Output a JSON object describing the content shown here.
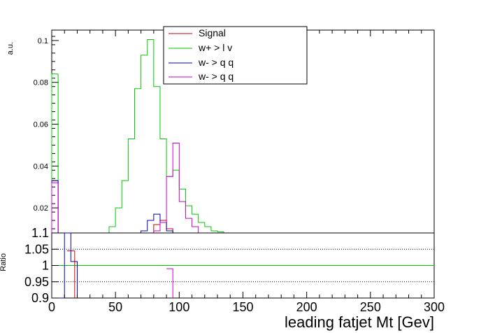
{
  "chart_data": [
    {
      "type": "histogram",
      "ylabel": "a.u.",
      "xlim": [
        0,
        300
      ],
      "ylim": [
        0.008,
        0.105
      ],
      "yticks": [
        0.02,
        0.04,
        0.06,
        0.08,
        0.1
      ],
      "ytick_labels": [
        "0.02",
        "0.04",
        "0.06",
        "0.08",
        "0.1"
      ],
      "bin_width": 5,
      "legend": {
        "placement": "top-center",
        "entries": [
          {
            "label": "Signal",
            "color": "#cc0000"
          },
          {
            "label": "w+ > l v",
            "color": "#00cc00"
          },
          {
            "label": "w- > q q",
            "color": "#0000bb"
          },
          {
            "label": "w- > q q",
            "color": "#cc00cc"
          }
        ]
      },
      "series": [
        {
          "name": "Signal",
          "color": "#cc0000",
          "x": [
            0,
            45,
            50,
            55,
            60,
            65,
            70,
            75,
            80,
            85,
            90,
            95,
            100,
            105,
            110,
            115,
            120
          ],
          "values": [
            0.033,
            0.0,
            0.0,
            0.0,
            0.0,
            0.0,
            0.001,
            0.007,
            0.012,
            0.014,
            0.01,
            0.005,
            0.002,
            0.0,
            0.0,
            0.0,
            0.0
          ]
        },
        {
          "name": "w+ > l v",
          "color": "#00cc00",
          "x": [
            0,
            5,
            10,
            15,
            20,
            25,
            30,
            35,
            40,
            45,
            50,
            55,
            60,
            65,
            70,
            75,
            80,
            85,
            90,
            95,
            100,
            105,
            110,
            115,
            120,
            125,
            130,
            135,
            140
          ],
          "values": [
            0.084,
            0.0,
            0.0,
            0.0,
            0.0,
            0.0,
            0.0,
            0.0,
            0.0,
            0.011,
            0.02,
            0.033,
            0.053,
            0.077,
            0.093,
            0.1005,
            0.078,
            0.053,
            0.035,
            0.038,
            0.029,
            0.021,
            0.017,
            0.013,
            0.011,
            0.009,
            0.0085,
            0.0,
            0.0
          ]
        },
        {
          "name": "w- > q q",
          "color": "#0000bb",
          "x": [
            0,
            65,
            70,
            75,
            80,
            85,
            90,
            95,
            100,
            105,
            110
          ],
          "values": [
            0.033,
            0.008,
            0.009,
            0.014,
            0.017,
            0.013,
            0.009,
            0.006,
            0.004,
            0.0,
            0.0
          ]
        },
        {
          "name": "w- > q q",
          "color": "#cc00cc",
          "x": [
            0,
            70,
            75,
            80,
            85,
            90,
            95,
            100,
            105,
            110,
            115,
            120
          ],
          "values": [
            0.032,
            0.0,
            0.0,
            0.009,
            0.013,
            0.035,
            0.051,
            0.023,
            0.015,
            0.011,
            0.0,
            0.0
          ]
        }
      ]
    },
    {
      "type": "line",
      "ylabel": "Ratio",
      "xlabel": "leading fatjet Mt [Gev]",
      "xlim": [
        0,
        300
      ],
      "ylim": [
        0.9,
        1.1
      ],
      "yticks": [
        0.9,
        0.95,
        1,
        1.05,
        1.1
      ],
      "ytick_labels": [
        "0.9",
        "0.95",
        "1",
        "1.05",
        "1.1"
      ],
      "xticks": [
        0,
        50,
        100,
        150,
        200,
        250,
        300
      ],
      "xtick_labels": [
        "0",
        "50",
        "100",
        "150",
        "200",
        "250",
        "300"
      ],
      "reference_lines": [
        0.95,
        1.05
      ],
      "series": [
        {
          "color": "#00cc00",
          "x": [
            0,
            300
          ],
          "values": [
            1.0,
            1.0
          ]
        },
        {
          "color": "#cc0000",
          "x": [
            12,
            18
          ],
          "values": [
            1.045,
            0.9
          ]
        },
        {
          "color": "#0000bb",
          "x": [
            5,
            10,
            15,
            20
          ],
          "values": [
            0.9,
            1.1,
            1.012,
            0.9
          ]
        },
        {
          "color": "#cc00cc",
          "x": [
            90,
            95
          ],
          "values": [
            0.99,
            0.9
          ]
        }
      ]
    }
  ]
}
